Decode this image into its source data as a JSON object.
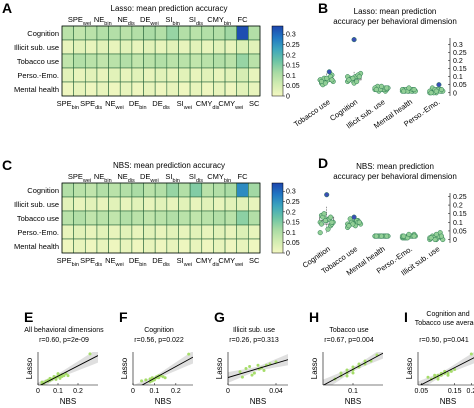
{
  "colors": {
    "colormap": [
      "#f4f8c2",
      "#d2ecb1",
      "#a9dba4",
      "#6cc4a5",
      "#3ea6bd",
      "#2178c3",
      "#1d45ad"
    ],
    "point": "#92cf96",
    "point_stroke": "#2a7a52",
    "outlier": "#3a4fb5",
    "box": "#555555",
    "scatter_pt": "#a6dd6a",
    "fit_line": "#000000",
    "ci_band": "#dcdcdc"
  },
  "panels": {
    "A": {
      "letter": "A",
      "title": "Lasso: mean prediction accuracy",
      "top_ticks": [
        {
          "base": "SPE",
          "sub": "wei"
        },
        {
          "base": "NE",
          "sub": "bin"
        },
        {
          "base": "NE",
          "sub": "dis"
        },
        {
          "base": "DE",
          "sub": "wei"
        },
        {
          "base": "SI",
          "sub": "bin"
        },
        {
          "base": "SI",
          "sub": "dis"
        },
        {
          "base": "CMY",
          "sub": "bin"
        },
        {
          "base": "FC",
          "sub": ""
        }
      ],
      "bottom_ticks": [
        {
          "base": "SPE",
          "sub": "bin"
        },
        {
          "base": "SPE",
          "sub": "dis"
        },
        {
          "base": "NE",
          "sub": "wei"
        },
        {
          "base": "DE",
          "sub": "bin"
        },
        {
          "base": "DE",
          "sub": "dis"
        },
        {
          "base": "SI",
          "sub": "wei"
        },
        {
          "base": "CMY",
          "sub": "dis"
        },
        {
          "base": "CMY",
          "sub": "wei"
        },
        {
          "base": "SC",
          "sub": ""
        }
      ],
      "rows": [
        "Cognition",
        "Illicit sub. use",
        "Tobacco use",
        "Perso.-Emo.",
        "Mental health"
      ]
    },
    "B": {
      "letter": "B",
      "title": [
        "Lasso: mean prediction",
        "accuracy per behavioral dimension"
      ],
      "ylim": [
        -0.02,
        0.34
      ],
      "yticks": [
        "0",
        "0.05",
        "0.1",
        "0.15",
        "0.2",
        "0.25",
        "0.3"
      ]
    },
    "C": {
      "letter": "C",
      "title": "NBS: mean prediction accuracy",
      "top_ticks": [
        {
          "base": "SPE",
          "sub": "wei"
        },
        {
          "base": "NE",
          "sub": "bin"
        },
        {
          "base": "NE",
          "sub": "dis"
        },
        {
          "base": "DE",
          "sub": "wei"
        },
        {
          "base": "SI",
          "sub": "bin"
        },
        {
          "base": "SI",
          "sub": "dis"
        },
        {
          "base": "CMY",
          "sub": "bin"
        },
        {
          "base": "FC",
          "sub": ""
        }
      ],
      "bottom_ticks": [
        {
          "base": "SPE",
          "sub": "bin"
        },
        {
          "base": "SPE",
          "sub": "dis"
        },
        {
          "base": "NE",
          "sub": "wei"
        },
        {
          "base": "DE",
          "sub": "bin"
        },
        {
          "base": "DE",
          "sub": "dis"
        },
        {
          "base": "SI",
          "sub": "wei"
        },
        {
          "base": "CMY",
          "sub": "dis"
        },
        {
          "base": "CMY",
          "sub": "wei"
        },
        {
          "base": "SC",
          "sub": ""
        }
      ],
      "rows": [
        "Cognition",
        "Illicit sub. use",
        "Tobacco use",
        "Perso.-Emo.",
        "Mental health"
      ]
    },
    "D": {
      "letter": "D",
      "title": [
        "NBS: mean prediction",
        "accuracy per behavioral dimension"
      ],
      "ylim": [
        -0.02,
        0.27
      ],
      "yticks": [
        "0",
        "0.05",
        "0.1",
        "0.15",
        "0.2",
        "0.25"
      ]
    }
  },
  "colorbar": {
    "ticks": [
      "0",
      "0.05",
      "0.1",
      "0.15",
      "0.2",
      "0.25",
      "0.3"
    ],
    "min": 0,
    "max": 0.34
  },
  "chart_data": [
    {
      "panel": "A",
      "type": "heatmap",
      "title": "Lasso: mean prediction accuracy",
      "columns": [
        "SPE bin",
        "SPE wei",
        "SPE dis",
        "NE bin",
        "NE wei",
        "NE dis",
        "DE bin",
        "DE wei",
        "DE dis",
        "SI bin",
        "SI wei",
        "SI dis",
        "CMY bin",
        "CMY dis",
        "CMY wei",
        "FC",
        "SC"
      ],
      "rows": [
        "Cognition",
        "Illicit sub. use",
        "Tobacco use",
        "Perso.-Emo.",
        "Mental health"
      ],
      "values": [
        [
          0.09,
          0.08,
          0.09,
          0.1,
          0.1,
          0.09,
          0.1,
          0.11,
          0.1,
          0.13,
          0.1,
          0.09,
          0.1,
          0.1,
          0.12,
          0.33,
          0.1
        ],
        [
          0.02,
          0.03,
          0.02,
          0.03,
          0.02,
          0.03,
          0.02,
          0.03,
          0.02,
          0.03,
          0.02,
          0.03,
          0.02,
          0.03,
          0.02,
          0.04,
          0.03
        ],
        [
          0.08,
          0.1,
          0.09,
          0.08,
          0.09,
          0.1,
          0.08,
          0.09,
          0.1,
          0.09,
          0.09,
          0.08,
          0.09,
          0.1,
          0.09,
          0.13,
          0.09
        ],
        [
          0.03,
          0.02,
          0.03,
          0.02,
          0.03,
          0.02,
          0.03,
          0.02,
          0.03,
          0.02,
          0.03,
          0.02,
          0.03,
          0.02,
          0.03,
          0.05,
          0.02
        ],
        [
          0.01,
          0.02,
          0.01,
          0.02,
          0.01,
          0.02,
          0.01,
          0.02,
          0.01,
          0.02,
          0.01,
          0.02,
          0.01,
          0.02,
          0.01,
          0.03,
          0.02
        ]
      ],
      "colorbar_range": [
        0,
        0.34
      ]
    },
    {
      "panel": "B",
      "type": "scatter",
      "title": "Lasso: mean prediction accuracy per behavioral dimension",
      "categories": [
        "Tobacco use",
        "Cognition",
        "Illicit sub. use",
        "Mental health",
        "Perso.-Emo."
      ],
      "values": [
        [
          0.08,
          0.07,
          0.1,
          0.06,
          0.09,
          0.11,
          0.05,
          0.08,
          0.07,
          0.09,
          0.13,
          0.08,
          0.06,
          0.1,
          0.07,
          0.09,
          0.08
        ],
        [
          0.07,
          0.09,
          0.1,
          0.08,
          0.06,
          0.11,
          0.09,
          0.1,
          0.12,
          0.08,
          0.07,
          0.1,
          0.09,
          0.11,
          0.08,
          0.33,
          0.1
        ],
        [
          0.02,
          0.03,
          0.01,
          0.02,
          0.03,
          0.02,
          0.04,
          0.02,
          0.03,
          0.01,
          0.02,
          0.03,
          0.02,
          0.03,
          0.02,
          0.04,
          0.03
        ],
        [
          0.01,
          0.02,
          0.01,
          0.02,
          0.01,
          0.02,
          0.01,
          0.02,
          0.01,
          0.02,
          0.01,
          0.02,
          0.01,
          0.02,
          0.01,
          0.03,
          0.02
        ],
        [
          0.0,
          0.01,
          0.02,
          0.01,
          0.0,
          0.01,
          0.03,
          0.02,
          0.01,
          0.0,
          0.05,
          0.01,
          0.02,
          0.01,
          0.0,
          0.01,
          0.02
        ]
      ],
      "ylim": [
        -0.02,
        0.34
      ]
    },
    {
      "panel": "C",
      "type": "heatmap",
      "title": "NBS: mean prediction accuracy",
      "columns": [
        "SPE bin",
        "SPE wei",
        "SPE dis",
        "NE bin",
        "NE wei",
        "NE dis",
        "DE bin",
        "DE wei",
        "DE dis",
        "SI bin",
        "SI wei",
        "SI dis",
        "CMY bin",
        "CMY dis",
        "CMY wei",
        "FC",
        "SC"
      ],
      "rows": [
        "Cognition",
        "Illicit sub. use",
        "Tobacco use",
        "Perso.-Emo.",
        "Mental health"
      ],
      "values": [
        [
          0.1,
          0.09,
          0.08,
          0.1,
          0.09,
          0.1,
          0.11,
          0.09,
          0.1,
          0.13,
          0.1,
          0.15,
          0.09,
          0.1,
          0.11,
          0.26,
          0.12
        ],
        [
          0.03,
          0.02,
          0.03,
          0.02,
          0.03,
          0.02,
          0.03,
          0.02,
          0.03,
          0.02,
          0.03,
          0.02,
          0.03,
          0.02,
          0.03,
          0.03,
          0.02
        ],
        [
          0.09,
          0.1,
          0.08,
          0.09,
          0.08,
          0.1,
          0.09,
          0.08,
          0.09,
          0.1,
          0.09,
          0.08,
          0.09,
          0.1,
          0.09,
          0.14,
          0.1
        ],
        [
          0.02,
          0.03,
          0.02,
          0.03,
          0.02,
          0.03,
          0.02,
          0.03,
          0.02,
          0.03,
          0.02,
          0.03,
          0.02,
          0.03,
          0.02,
          0.04,
          0.02
        ],
        [
          0.01,
          0.02,
          0.01,
          0.02,
          0.01,
          0.02,
          0.01,
          0.02,
          0.01,
          0.02,
          0.01,
          0.02,
          0.01,
          0.02,
          0.01,
          0.02,
          0.01
        ]
      ],
      "colorbar_range": [
        0,
        0.34
      ]
    },
    {
      "panel": "D",
      "type": "scatter",
      "title": "NBS: mean prediction accuracy per behavioral dimension",
      "categories": [
        "Cognition",
        "Tobacco use",
        "Mental health",
        "Perso.-Emo.",
        "Illicit sub. use"
      ],
      "values": [
        [
          0.1,
          0.12,
          0.08,
          0.14,
          0.11,
          0.09,
          0.13,
          0.06,
          0.1,
          0.15,
          0.12,
          0.04,
          0.11,
          0.13,
          0.09,
          0.26,
          0.1
        ],
        [
          0.09,
          0.1,
          0.11,
          0.08,
          0.09,
          0.1,
          0.12,
          0.08,
          0.09,
          0.1,
          0.11,
          0.07,
          0.09,
          0.1,
          0.08,
          0.13,
          0.1
        ],
        [
          0.02,
          0.02,
          0.02,
          0.02,
          0.02,
          0.02,
          0.02,
          0.02,
          0.02,
          0.02,
          0.02,
          0.02,
          0.02,
          0.02,
          0.02,
          0.02,
          0.02
        ],
        [
          0.01,
          0.02,
          0.02,
          0.01,
          0.02,
          0.03,
          0.01,
          0.02,
          0.02,
          0.01,
          0.02,
          0.02,
          0.01,
          0.02,
          0.02,
          0.03,
          0.02
        ],
        [
          0.0,
          0.01,
          0.02,
          0.01,
          0.0,
          0.01,
          0.02,
          0.01,
          0.0,
          0.01,
          0.02,
          0.01,
          0.0,
          0.04,
          0.01,
          0.03,
          0.02
        ]
      ],
      "ylim": [
        -0.02,
        0.27
      ]
    },
    {
      "panel": "E",
      "type": "scatter",
      "title": "All behavioral dimensions",
      "annotation": "r=0.60, p=2e-09",
      "xlabel": "NBS",
      "ylabel": "Lasso",
      "xlim": [
        0,
        0.3
      ],
      "ylim": [
        0,
        0.35
      ],
      "xticks": [
        "0",
        "0.1",
        "0.2"
      ],
      "x": [
        0.02,
        0.03,
        0.05,
        0.06,
        0.08,
        0.09,
        0.1,
        0.11,
        0.04,
        0.07,
        0.12,
        0.09,
        0.1,
        0.13,
        0.02,
        0.05,
        0.08,
        0.11,
        0.14,
        0.15,
        0.03,
        0.06,
        0.12,
        0.26
      ],
      "y": [
        0.03,
        0.02,
        0.05,
        0.07,
        0.08,
        0.06,
        0.09,
        0.1,
        0.04,
        0.06,
        0.11,
        0.08,
        0.12,
        0.1,
        0.01,
        0.04,
        0.09,
        0.07,
        0.12,
        0.1,
        0.02,
        0.05,
        0.09,
        0.33
      ]
    },
    {
      "panel": "F",
      "type": "scatter",
      "title": "Cognition",
      "annotation": "r=0.56, p=0.022",
      "xlabel": "NBS",
      "ylabel": "Lasso",
      "xlim": [
        0,
        0.28
      ],
      "ylim": [
        0.03,
        0.35
      ],
      "xticks": [
        "0",
        "0.1",
        "0.2"
      ],
      "x": [
        0.04,
        0.06,
        0.08,
        0.09,
        0.1,
        0.11,
        0.12,
        0.13,
        0.1,
        0.09,
        0.11,
        0.14,
        0.12,
        0.15,
        0.08,
        0.1,
        0.26
      ],
      "y": [
        0.07,
        0.08,
        0.09,
        0.1,
        0.08,
        0.11,
        0.1,
        0.12,
        0.09,
        0.07,
        0.1,
        0.11,
        0.12,
        0.1,
        0.06,
        0.09,
        0.33
      ]
    },
    {
      "panel": "G",
      "type": "scatter",
      "title": "",
      "annotation": "Illicit sub. use r=0.26, p=0.313",
      "xlabel": "NBS",
      "ylabel": "Lasso",
      "xlim": [
        0,
        0.05
      ],
      "ylim": [
        0,
        0.05
      ],
      "xticks": [
        "0",
        "0.04"
      ],
      "x": [
        0.01,
        0.015,
        0.02,
        0.025,
        0.03,
        0.018,
        0.022,
        0.028,
        0.035,
        0.04,
        0.012,
        0.026,
        0.032
      ],
      "y": [
        0.02,
        0.025,
        0.015,
        0.03,
        0.022,
        0.028,
        0.018,
        0.026,
        0.032,
        0.035,
        0.012,
        0.024,
        0.03
      ]
    },
    {
      "panel": "H",
      "type": "scatter",
      "title": "Tobacco use",
      "annotation": "r=0.67, p=0.004",
      "xlabel": "NBS",
      "ylabel": "Lasso",
      "xlim": [
        0.05,
        0.15
      ],
      "ylim": [
        0.03,
        0.14
      ],
      "xticks": [
        "0.1"
      ],
      "x": [
        0.07,
        0.08,
        0.08,
        0.09,
        0.09,
        0.1,
        0.1,
        0.11,
        0.11,
        0.12,
        0.12,
        0.13,
        0.09,
        0.1,
        0.11,
        0.14
      ],
      "y": [
        0.05,
        0.06,
        0.07,
        0.07,
        0.08,
        0.08,
        0.09,
        0.09,
        0.1,
        0.1,
        0.11,
        0.11,
        0.06,
        0.07,
        0.09,
        0.13
      ]
    },
    {
      "panel": "I",
      "type": "scatter",
      "title": "Cognition and Tobacco use average",
      "annotation": "r=0.50, p=0.041",
      "xlabel": "NBS",
      "ylabel": "Lasso",
      "xlim": [
        0.04,
        0.22
      ],
      "ylim": [
        0.05,
        0.22
      ],
      "xticks": [
        "0.05",
        "0.15",
        "0.2"
      ],
      "x": [
        0.07,
        0.08,
        0.09,
        0.1,
        0.1,
        0.11,
        0.11,
        0.12,
        0.12,
        0.13,
        0.14,
        0.15,
        0.09,
        0.1,
        0.13,
        0.2
      ],
      "y": [
        0.09,
        0.08,
        0.1,
        0.09,
        0.1,
        0.11,
        0.1,
        0.12,
        0.11,
        0.1,
        0.12,
        0.13,
        0.09,
        0.08,
        0.11,
        0.21
      ]
    }
  ]
}
